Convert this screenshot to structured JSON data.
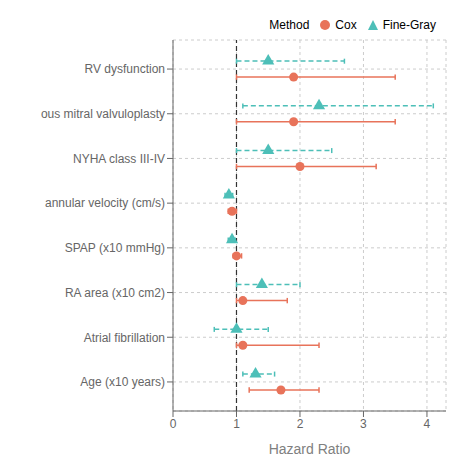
{
  "chart_data": {
    "type": "forest",
    "xlabel": "Hazard Ratio",
    "legend_title": "Method",
    "categories": [
      "RV dysfunction",
      "ous mitral valvuloplasty",
      "NYHA class III-IV",
      "annular velocity (cm/s)",
      "SPAP (x10 mmHg)",
      "RA area (x10 cm2)",
      "Atrial fibrillation",
      "Age (x10 years)"
    ],
    "series": [
      {
        "name": "Cox",
        "color": "#E8735A",
        "marker": "circle",
        "line_style": "solid",
        "values": [
          1.9,
          1.9,
          2.0,
          0.93,
          1.0,
          1.1,
          1.1,
          1.7
        ],
        "lo": [
          1.0,
          1.0,
          1.0,
          0.87,
          0.95,
          1.0,
          1.0,
          1.2
        ],
        "hi": [
          3.5,
          3.5,
          3.2,
          1.0,
          1.08,
          1.8,
          2.3,
          2.3
        ]
      },
      {
        "name": "Fine-Gray",
        "color": "#4DBFB8",
        "marker": "triangle",
        "line_style": "dashed",
        "values": [
          1.5,
          2.3,
          1.5,
          0.88,
          0.93,
          1.4,
          1.0,
          1.3
        ],
        "lo": [
          1.0,
          1.1,
          1.0,
          0.82,
          0.87,
          1.0,
          0.65,
          1.1
        ],
        "hi": [
          2.7,
          4.1,
          2.5,
          0.94,
          0.98,
          2.0,
          1.5,
          1.6
        ]
      }
    ],
    "ref_line": 1.0,
    "xlim": [
      0,
      4.3
    ],
    "xticks": [
      0,
      1,
      2,
      3,
      4
    ],
    "grid": true,
    "legend": "top right"
  }
}
